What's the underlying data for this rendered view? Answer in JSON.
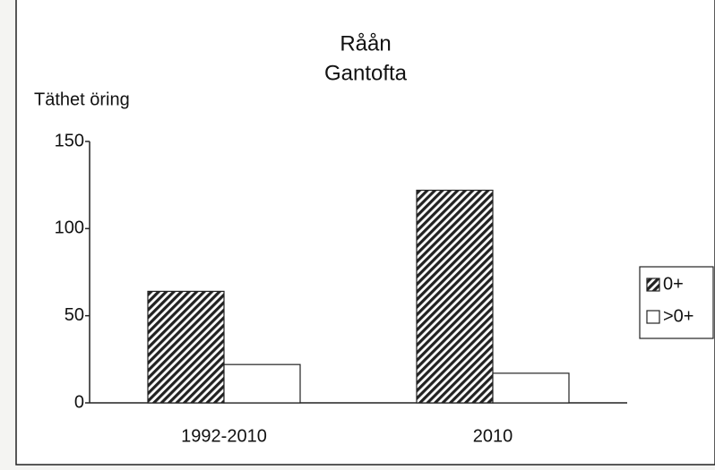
{
  "chart_data": {
    "type": "bar",
    "title": "Råån",
    "subtitle": "Gantofta",
    "y_label": "Täthet öring",
    "categories": [
      "1992-2010",
      "2010"
    ],
    "series": [
      {
        "name": "0+",
        "color": "#222222",
        "hatch": true,
        "values": [
          64,
          122
        ]
      },
      {
        "name": ">0+",
        "color": "#ffffff",
        "hatch": false,
        "values": [
          22,
          17
        ]
      }
    ],
    "ylim": [
      0,
      150
    ],
    "yticks": [
      0,
      50,
      100,
      150
    ],
    "legend": "right"
  }
}
